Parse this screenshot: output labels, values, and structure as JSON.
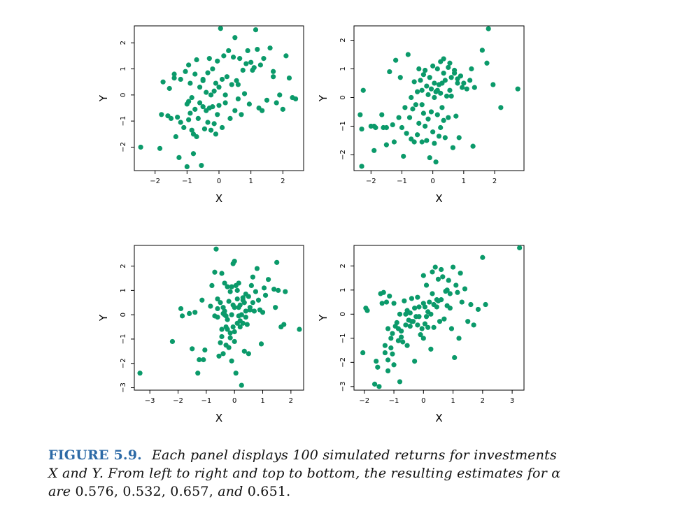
{
  "figure": {
    "caption": {
      "label": "FIGURE 5.9.",
      "line1": "Each panel displays 100 simulated returns for investments",
      "line2": "X and Y. From left to right and top to bottom, the resulting estimates for α",
      "line3_prefix": "are",
      "alphas": [
        "0.576,",
        "0.532,",
        "0.657,",
        "and",
        "0.651."
      ]
    }
  },
  "colors": {
    "point": "#0b9a6a",
    "axis": "#000000"
  },
  "chart_data": [
    {
      "type": "scatter",
      "title": "",
      "xlabel": "X",
      "ylabel": "Y",
      "xlim": [
        -2.65,
        2.65
      ],
      "ylim": [
        -2.9,
        2.65
      ],
      "xticks": [
        -2,
        -1,
        0,
        1,
        2
      ],
      "yticks": [
        -2,
        -1,
        0,
        1,
        2
      ],
      "grid": false,
      "x": [
        -2.45,
        -1.85,
        -1.8,
        -1.75,
        -1.6,
        -1.55,
        -1.5,
        -1.4,
        -1.35,
        -1.3,
        -1.25,
        -1.2,
        -1.2,
        -1.1,
        -1.05,
        -1.0,
        -1.0,
        -0.95,
        -0.95,
        -0.9,
        -0.9,
        -0.85,
        -0.85,
        -0.8,
        -0.8,
        -0.75,
        -0.75,
        -0.7,
        -0.7,
        -0.65,
        -0.6,
        -0.6,
        -0.55,
        -0.5,
        -0.5,
        -0.45,
        -0.4,
        -0.4,
        -0.35,
        -0.35,
        -0.3,
        -0.3,
        -0.25,
        -0.25,
        -0.2,
        -0.2,
        -0.15,
        -0.15,
        -0.1,
        -0.1,
        -0.05,
        -0.05,
        0.0,
        0.0,
        0.05,
        0.1,
        0.1,
        0.15,
        0.2,
        0.2,
        0.25,
        0.3,
        0.35,
        0.4,
        0.45,
        0.5,
        0.5,
        0.55,
        0.6,
        0.65,
        0.7,
        0.75,
        0.8,
        0.85,
        0.9,
        0.95,
        1.0,
        1.05,
        1.1,
        1.15,
        1.2,
        1.25,
        1.3,
        1.35,
        1.4,
        1.5,
        1.6,
        1.7,
        1.8,
        1.9,
        2.0,
        2.1,
        2.2,
        2.3,
        2.4,
        -1.4,
        -0.95,
        0.6,
        -0.5,
        1.7
      ],
      "y": [
        -2.0,
        -2.05,
        -0.75,
        0.5,
        -0.8,
        0.25,
        -0.9,
        0.65,
        -1.6,
        -0.85,
        -2.4,
        -1.05,
        0.6,
        -1.25,
        0.9,
        -0.35,
        -2.75,
        -0.95,
        1.15,
        -0.7,
        0.45,
        -1.35,
        -0.1,
        -1.5,
        -2.25,
        0.8,
        -0.55,
        1.35,
        -1.6,
        -0.9,
        -0.3,
        0.3,
        -2.7,
        -0.45,
        0.55,
        -1.3,
        0.1,
        -0.6,
        -1.05,
        0.85,
        1.4,
        -0.5,
        0.0,
        -1.35,
        1.0,
        -0.45,
        0.15,
        -1.1,
        0.45,
        -1.5,
        1.3,
        -0.75,
        0.3,
        -0.4,
        2.55,
        -1.25,
        0.6,
        1.5,
        0.0,
        -0.3,
        0.7,
        1.7,
        -0.9,
        0.4,
        1.45,
        2.2,
        -0.6,
        0.55,
        -0.15,
        1.4,
        -0.75,
        0.95,
        0.05,
        1.2,
        1.7,
        -0.35,
        1.25,
        0.95,
        1.05,
        2.5,
        1.75,
        -0.5,
        1.15,
        -0.6,
        1.4,
        -0.2,
        1.8,
        0.7,
        -0.3,
        0.0,
        -0.55,
        1.5,
        0.65,
        -0.1,
        -0.15,
        0.8,
        -0.25,
        0.4,
        0.6,
        0.9
      ]
    },
    {
      "type": "scatter",
      "title": "",
      "xlabel": "X",
      "ylabel": "Y",
      "xlim": [
        -2.55,
        2.95
      ],
      "ylim": [
        -2.55,
        2.5
      ],
      "xticks": [
        -2,
        -1,
        0,
        1,
        2
      ],
      "yticks": [
        -2,
        -1,
        0,
        1,
        2
      ],
      "grid": false,
      "x": [
        -2.35,
        -2.3,
        -2.3,
        -2.25,
        -2.0,
        -1.9,
        -1.85,
        -1.65,
        -1.6,
        -1.5,
        -1.4,
        -1.3,
        -1.25,
        -1.2,
        -1.1,
        -1.05,
        -1.0,
        -0.95,
        -0.9,
        -0.85,
        -0.8,
        -0.75,
        -0.7,
        -0.7,
        -0.65,
        -0.6,
        -0.55,
        -0.5,
        -0.5,
        -0.45,
        -0.4,
        -0.35,
        -0.35,
        -0.3,
        -0.3,
        -0.25,
        -0.2,
        -0.2,
        -0.15,
        -0.15,
        -0.1,
        -0.1,
        -0.05,
        -0.05,
        0.0,
        0.0,
        0.05,
        0.05,
        0.1,
        0.1,
        0.15,
        0.15,
        0.2,
        0.2,
        0.25,
        0.25,
        0.3,
        0.3,
        0.35,
        0.35,
        0.4,
        0.4,
        0.45,
        0.5,
        0.5,
        0.55,
        0.6,
        0.65,
        0.7,
        0.75,
        0.8,
        0.85,
        0.9,
        0.95,
        1.0,
        1.1,
        1.2,
        1.25,
        1.3,
        1.35,
        1.6,
        1.75,
        1.8,
        1.95,
        2.2,
        2.75,
        -1.9,
        -1.5,
        -0.6,
        0.35,
        -0.25,
        0.6,
        0.05,
        0.8,
        0.25,
        -0.45,
        0.55,
        0.7,
        -0.35,
        0.15
      ],
      "y": [
        -0.6,
        -1.1,
        -2.4,
        0.25,
        -1.0,
        -1.85,
        -1.05,
        -0.6,
        -1.05,
        -1.65,
        0.9,
        -0.95,
        -1.55,
        1.3,
        -0.7,
        0.7,
        -1.05,
        -2.05,
        -0.35,
        -1.25,
        1.5,
        -0.7,
        -1.45,
        0.0,
        -0.4,
        0.55,
        -0.25,
        -1.3,
        0.2,
        -0.9,
        0.6,
        -1.55,
        0.25,
        -0.55,
        0.8,
        -1.0,
        0.4,
        -1.5,
        0.1,
        -0.75,
        0.7,
        -2.1,
        0.3,
        -0.5,
        1.1,
        -1.2,
        0.5,
        -1.6,
        0.2,
        -2.25,
        1.0,
        -0.6,
        0.45,
        -1.35,
        1.25,
        -1.05,
        0.5,
        -0.35,
        0.85,
        -0.8,
        0.6,
        -1.4,
        0.05,
        1.05,
        -0.7,
        0.25,
        0.7,
        -1.75,
        0.95,
        -0.65,
        0.5,
        -1.4,
        0.75,
        0.35,
        0.5,
        0.3,
        0.6,
        1.0,
        -1.7,
        0.35,
        1.65,
        1.2,
        2.4,
        0.45,
        -0.35,
        0.3,
        -1.0,
        -1.05,
        -1.55,
        1.35,
        0.95,
        0.05,
        0.0,
        0.65,
        0.15,
        1.0,
        1.2,
        0.85,
        -0.25,
        0.25
      ]
    },
    {
      "type": "scatter",
      "title": "",
      "xlabel": "X",
      "ylabel": "Y",
      "xlim": [
        -3.55,
        2.45
      ],
      "ylim": [
        -3.1,
        2.85
      ],
      "xticks": [
        -3,
        -2,
        -1,
        0,
        1,
        2
      ],
      "yticks": [
        -3,
        -2,
        -1,
        0,
        1,
        2
      ],
      "grid": false,
      "x": [
        -3.35,
        -2.2,
        -1.9,
        -1.85,
        -1.6,
        -1.5,
        -1.4,
        -1.3,
        -1.25,
        -1.15,
        -1.1,
        -1.05,
        -0.85,
        -0.8,
        -0.7,
        -0.65,
        -0.6,
        -0.6,
        -0.55,
        -0.5,
        -0.5,
        -0.45,
        -0.45,
        -0.4,
        -0.4,
        -0.35,
        -0.35,
        -0.3,
        -0.3,
        -0.25,
        -0.25,
        -0.2,
        -0.2,
        -0.15,
        -0.15,
        -0.1,
        -0.1,
        -0.05,
        -0.05,
        0.0,
        0.0,
        0.0,
        0.05,
        0.05,
        0.1,
        0.1,
        0.15,
        0.15,
        0.2,
        0.2,
        0.25,
        0.25,
        0.3,
        0.3,
        0.35,
        0.35,
        0.4,
        0.4,
        0.45,
        0.5,
        0.5,
        0.55,
        0.6,
        0.65,
        0.7,
        0.75,
        0.8,
        0.85,
        0.9,
        0.95,
        1.0,
        1.05,
        1.1,
        1.2,
        1.4,
        1.45,
        1.5,
        1.55,
        1.65,
        1.75,
        1.8,
        2.3,
        0.3,
        -0.35,
        -0.05,
        -0.25,
        0.1,
        -0.4,
        -0.15,
        0.2,
        -0.6,
        0.55,
        0.0,
        0.4,
        -0.7,
        -0.3,
        0.15,
        -0.1,
        0.65,
        -0.45
      ],
      "y": [
        -2.4,
        -1.1,
        0.25,
        -0.05,
        0.05,
        -1.4,
        0.1,
        -2.4,
        -1.85,
        0.6,
        -1.85,
        -1.45,
        0.35,
        1.2,
        -0.05,
        2.7,
        -0.1,
        0.25,
        -1.7,
        -1.15,
        0.5,
        1.7,
        -0.6,
        0.3,
        -1.6,
        0.0,
        1.3,
        -0.5,
        -1.25,
        1.15,
        -0.2,
        0.55,
        -1.35,
        0.95,
        -0.75,
        1.15,
        -1.9,
        2.1,
        -0.5,
        2.2,
        0.3,
        -1.1,
        1.2,
        -2.4,
        0.65,
        -0.35,
        1.3,
        -0.05,
        0.4,
        -0.5,
        0.0,
        -2.9,
        0.7,
        -0.35,
        0.5,
        -1.5,
        0.15,
        -0.1,
        -0.4,
        0.75,
        -1.6,
        0.3,
        1.2,
        1.55,
        0.15,
        0.95,
        1.9,
        0.6,
        0.2,
        -1.2,
        0.1,
        1.1,
        0.8,
        1.45,
        1.05,
        0.3,
        2.15,
        1.0,
        -0.5,
        -0.4,
        0.95,
        -0.6,
        0.6,
        0.15,
        0.4,
        -0.6,
        1.0,
        0.05,
        -0.95,
        -0.25,
        0.65,
        0.2,
        -0.7,
        0.85,
        1.75,
        -0.05,
        0.3,
        0.0,
        0.5,
        -0.9
      ]
    },
    {
      "type": "scatter",
      "title": "",
      "xlabel": "X",
      "ylabel": "Y",
      "xlim": [
        -2.35,
        3.4
      ],
      "ylim": [
        -3.15,
        2.85
      ],
      "xticks": [
        -2,
        -1,
        0,
        1,
        2,
        3
      ],
      "yticks": [
        -3,
        -2,
        -1,
        0,
        1,
        2
      ],
      "grid": false,
      "x": [
        -2.05,
        -1.95,
        -1.9,
        -1.65,
        -1.6,
        -1.5,
        -1.45,
        -1.4,
        -1.35,
        -1.3,
        -1.25,
        -1.2,
        -1.2,
        -1.15,
        -1.1,
        -1.05,
        -1.05,
        -1.0,
        -0.95,
        -0.9,
        -0.85,
        -0.8,
        -0.8,
        -0.75,
        -0.7,
        -0.65,
        -0.6,
        -0.55,
        -0.5,
        -0.45,
        -0.4,
        -0.35,
        -0.3,
        -0.25,
        -0.2,
        -0.15,
        -0.1,
        -0.05,
        0.0,
        0.0,
        0.05,
        0.1,
        0.1,
        0.15,
        0.2,
        0.25,
        0.3,
        0.35,
        0.4,
        0.45,
        0.5,
        0.55,
        0.6,
        0.65,
        0.7,
        0.75,
        0.8,
        0.85,
        0.9,
        0.95,
        1.0,
        1.05,
        1.1,
        1.15,
        1.2,
        1.3,
        1.4,
        1.5,
        1.6,
        1.7,
        1.85,
        2.0,
        2.1,
        3.25,
        -1.55,
        -1.3,
        -1.0,
        -0.75,
        -0.6,
        -0.4,
        -0.2,
        0.0,
        0.15,
        0.3,
        0.45,
        -0.85,
        -0.55,
        0.25,
        0.6,
        0.8,
        -1.1,
        -0.3,
        0.5,
        1.25,
        -0.15,
        0.05,
        -1.2,
        0.35,
        0.9,
        -0.45
      ],
      "y": [
        -1.6,
        0.25,
        0.15,
        -2.9,
        -1.95,
        -3.0,
        0.85,
        0.45,
        0.9,
        -1.3,
        0.5,
        -0.6,
        -2.35,
        0.75,
        -1.4,
        -1.65,
        -0.8,
        -2.1,
        -0.5,
        -0.35,
        -1.1,
        0.0,
        -2.8,
        -0.7,
        -1.15,
        0.55,
        -0.45,
        -1.3,
        -0.25,
        -0.5,
        0.65,
        -0.3,
        -1.95,
        -0.1,
        -0.45,
        0.3,
        -0.85,
        -0.6,
        0.45,
        -1.0,
        0.3,
        -0.1,
        1.2,
        -0.55,
        0.5,
        -1.45,
        1.75,
        0.4,
        1.95,
        0.6,
        1.45,
        -0.3,
        0.6,
        1.55,
        -0.2,
        0.95,
        0.35,
        1.4,
        0.85,
        -0.6,
        1.95,
        -1.8,
        1.2,
        0.9,
        -1.0,
        0.5,
        1.05,
        -0.3,
        0.4,
        -0.45,
        0.2,
        2.35,
        0.4,
        2.75,
        -2.2,
        -1.6,
        0.45,
        -0.95,
        0.0,
        -0.3,
        0.7,
        1.6,
        0.1,
        0.85,
        0.3,
        -0.6,
        0.15,
        0.0,
        1.85,
        1.0,
        -1.0,
        0.25,
        0.55,
        1.7,
        -0.1,
        -0.4,
        -1.9,
        -0.55,
        0.25,
        0.05
      ]
    }
  ]
}
